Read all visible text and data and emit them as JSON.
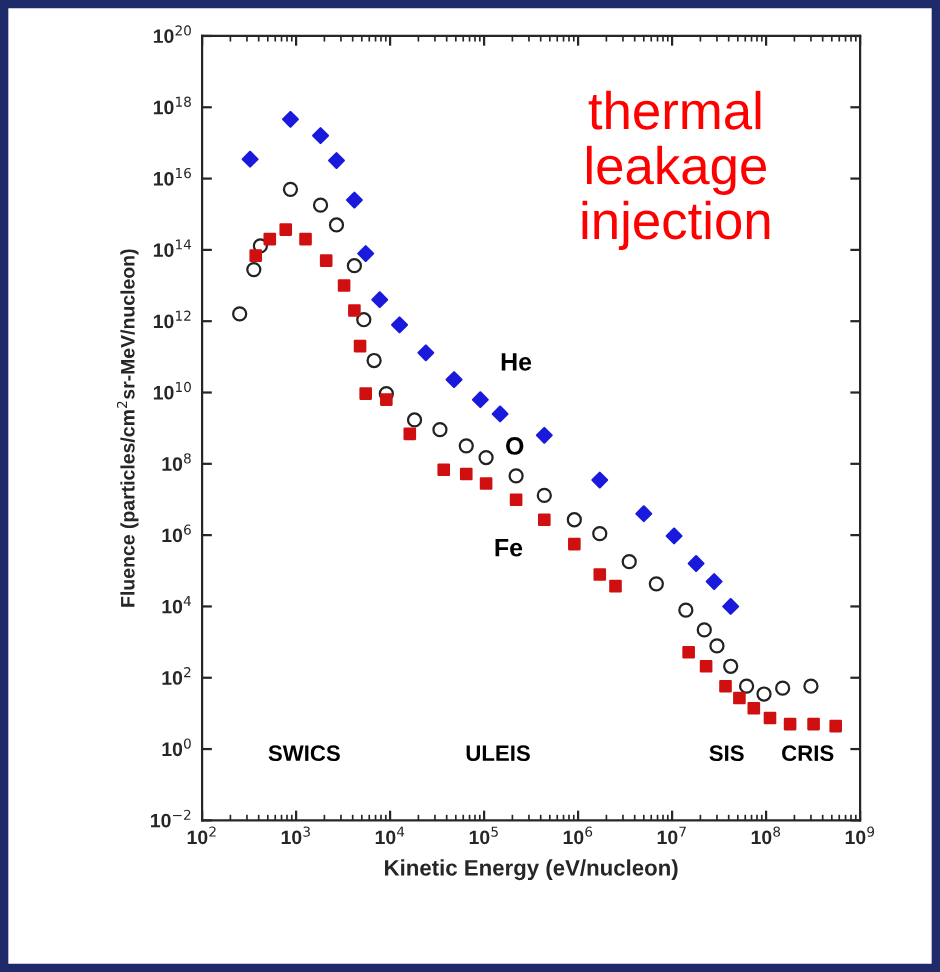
{
  "chart_data": {
    "type": "scatter",
    "xlabel": "Kinetic Energy (eV/nucleon)",
    "ylabel": "Fluence (particles/cm$^{2}$sr-MeV/nucleon)",
    "log": "xy",
    "grid": false,
    "legend": false,
    "xlim": [
      100,
      1000000000
    ],
    "ylim": [
      0.01,
      1e+20
    ],
    "xticks": [
      {
        "value": 100,
        "label": "10$^{2}$"
      },
      {
        "value": 1000,
        "label": "10$^{3}$"
      },
      {
        "value": 10000,
        "label": "10$^{4}$"
      },
      {
        "value": 100000,
        "label": "10$^{5}$"
      },
      {
        "value": 1000000,
        "label": "10$^{6}$"
      },
      {
        "value": 10000000,
        "label": "10$^{7}$"
      },
      {
        "value": 100000000,
        "label": "10$^{8}$"
      },
      {
        "value": 1000000000,
        "label": "10$^{9}$"
      }
    ],
    "yticks": [
      {
        "value": 0.01,
        "label": "10$^{−2}$"
      },
      {
        "value": 1,
        "label": "10$^{0}$"
      },
      {
        "value": 100,
        "label": "10$^{2}$"
      },
      {
        "value": 10000,
        "label": "10$^{4}$"
      },
      {
        "value": 1000000,
        "label": "10$^{6}$"
      },
      {
        "value": 100000000.0,
        "label": "10$^{8}$"
      },
      {
        "value": 10000000000.0,
        "label": "10$^{10}$"
      },
      {
        "value": 1000000000000.0,
        "label": "10$^{12}$"
      },
      {
        "value": 100000000000000.0,
        "label": "10$^{14}$"
      },
      {
        "value": 1e+16,
        "label": "10$^{16}$"
      },
      {
        "value": 1e+18,
        "label": "10$^{18}$"
      },
      {
        "value": 1e+20,
        "label": "10$^{20}$"
      }
    ],
    "annotations": [
      "thermal\nleakage\ninjection",
      "SWICS",
      "ULEIS",
      "SIS",
      "CRIS"
    ],
    "series": [
      {
        "name": "He",
        "color": "#1a1adc",
        "marker": "diamond",
        "x": [
          324,
          871,
          1820,
          2690,
          4170,
          5500,
          7760,
          12600,
          24000,
          47900,
          91200,
          148000,
          437000,
          1700000,
          5000000,
          10500000,
          18000000,
          28000000,
          42000000
        ],
        "values": [
          3.5e+16,
          4.6e+17,
          1.6e+17,
          3.2e+16,
          2500000000000000.0,
          79000000000000.0,
          4000000000000.0,
          790000000000.0,
          130000000000.0,
          23000000000.0,
          6300000000.0,
          2500000000.0,
          630000000.0,
          35000000.0,
          4000000.0,
          950000.0,
          160000.0,
          50000.0,
          10000.0
        ]
      },
      {
        "name": "O",
        "color": "#222222",
        "marker": "circle",
        "x": [
          251,
          355,
          417,
          871,
          1820,
          2690,
          4170,
          5250,
          6760,
          9120,
          18200,
          33900,
          64600,
          105000,
          219000,
          437000,
          912000,
          1700000,
          3500000,
          6800000,
          14000000,
          22000000,
          30000000,
          42000000,
          62000000,
          95000000,
          150000000,
          300000000
        ],
        "values": [
          1600000000000.0,
          28000000000000.0,
          130000000000000.0,
          5000000000000000.0,
          1800000000000000.0,
          500000000000000.0,
          36000000000000.0,
          1100000000000.0,
          79000000000.0,
          9300000000.0,
          1700000000.0,
          910000000.0,
          320000000.0,
          150000000.0,
          46000000.0,
          13000000.0,
          2700000.0,
          1100000.0,
          180000.0,
          43000.0,
          7900,
          2200,
          780,
          210,
          58,
          35,
          51,
          58
        ]
      },
      {
        "name": "Fe",
        "color": "#d01010",
        "marker": "square",
        "x": [
          372,
          525,
          776,
          1260,
          2090,
          3240,
          4170,
          4790,
          5500,
          9120,
          16200,
          37200,
          64600,
          105000,
          219000,
          437000,
          912000,
          1700000,
          2500000,
          15000000,
          23000000,
          37000000,
          52000000,
          74000000,
          110000000,
          180000000,
          320000000,
          550000000
        ],
        "values": [
          69000000000000.0,
          200000000000000.0,
          370000000000000.0,
          200000000000000.0,
          50000000000000.0,
          10000000000000.0,
          2000000000000.0,
          200000000000.0,
          9300000000.0,
          6300000000.0,
          690000000.0,
          68000000.0,
          52000000.0,
          28000000.0,
          9800000.0,
          2700000.0,
          560000.0,
          79000.0,
          37000.0,
          520,
          210,
          58,
          27,
          14,
          7.4,
          5.0,
          5.0,
          4.4
        ]
      }
    ]
  }
}
